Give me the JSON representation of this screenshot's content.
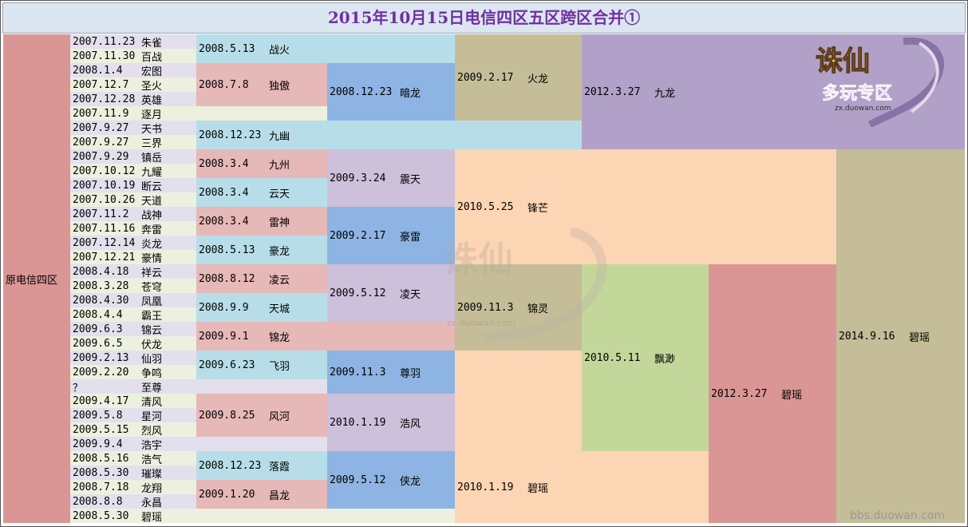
{
  "title": "2015年10月15日电信四区五区跨区合并①",
  "region_label": "原电信四区",
  "source_watermark": "bbs.duowan.com",
  "logo_text": "多玩专区",
  "logo_sub": "zx.duowan.com",
  "colors": {
    "pink": "#e6b8b7",
    "lightblue": "#b7dee8",
    "blue": "#8db4e2",
    "lavender": "#ccc0da",
    "tan": "#c4bd97",
    "purple": "#b1a0c7",
    "peach": "#fcd5b4",
    "green": "#c4d79b",
    "rose": "#da9694",
    "rowlav": "#e4dfec",
    "rowgreen": "#ebf1de"
  },
  "servers": [
    {
      "date": "2007.11.23",
      "name": "朱雀"
    },
    {
      "date": "2007.11.30",
      "name": "百战"
    },
    {
      "date": "2008.1.4",
      "name": "宏图"
    },
    {
      "date": "2007.12.7",
      "name": "圣火"
    },
    {
      "date": "2007.12.28",
      "name": "英雄"
    },
    {
      "date": "2007.11.9",
      "name": "逐月"
    },
    {
      "date": "2007.9.27",
      "name": "天书"
    },
    {
      "date": "2007.9.27",
      "name": "三界"
    },
    {
      "date": "2007.9.29",
      "name": "镇岳"
    },
    {
      "date": "2007.10.12",
      "name": "九耀"
    },
    {
      "date": "2007.10.19",
      "name": "断云"
    },
    {
      "date": "2007.10.26",
      "name": "天道"
    },
    {
      "date": "2007.11.2",
      "name": "战神"
    },
    {
      "date": "2007.11.16",
      "name": "奔雷"
    },
    {
      "date": "2007.12.14",
      "name": "炎龙"
    },
    {
      "date": "2007.12.21",
      "name": "豪情"
    },
    {
      "date": "2008.4.18",
      "name": "祥云"
    },
    {
      "date": "2008.3.28",
      "name": "苍穹"
    },
    {
      "date": "2008.4.30",
      "name": "凤凰"
    },
    {
      "date": "2008.4.4",
      "name": "霸王"
    },
    {
      "date": "2009.6.3",
      "name": "锦云"
    },
    {
      "date": "2009.6.5",
      "name": "伏龙"
    },
    {
      "date": "2009.2.13",
      "name": "仙羽"
    },
    {
      "date": "2009.2.20",
      "name": "争鸣"
    },
    {
      "date": "？",
      "name": "至尊"
    },
    {
      "date": "2009.4.17",
      "name": "清风"
    },
    {
      "date": "2009.5.8",
      "name": "星河"
    },
    {
      "date": "2009.5.15",
      "name": "烈风"
    },
    {
      "date": "2009.9.4",
      "name": "浩宇"
    },
    {
      "date": "2008.5.16",
      "name": "浩气"
    },
    {
      "date": "2008.5.30",
      "name": "璀璨"
    },
    {
      "date": "2008.7.18",
      "name": "龙翔"
    },
    {
      "date": "2008.8.8",
      "name": "永昌"
    },
    {
      "date": "2008.5.30",
      "name": "碧瑶"
    }
  ],
  "merges": [
    {
      "date": "2008.5.13",
      "name": "战火",
      "col": 2,
      "r0": 0,
      "r1": 1,
      "color": "lightblue"
    },
    {
      "date": "2008.7.8",
      "name": "独傲",
      "col": 2,
      "r0": 2,
      "r1": 4,
      "color": "pink"
    },
    {
      "date": "2008.12.23",
      "name": "九幽",
      "col": 2,
      "r0": 6,
      "r1": 7,
      "color": "lightblue"
    },
    {
      "date": "2008.3.4",
      "name": "九州",
      "col": 2,
      "r0": 8,
      "r1": 9,
      "color": "pink"
    },
    {
      "date": "2008.3.4",
      "name": "云天",
      "col": 2,
      "r0": 10,
      "r1": 11,
      "color": "lightblue"
    },
    {
      "date": "2008.3.4",
      "name": "雷神",
      "col": 2,
      "r0": 12,
      "r1": 13,
      "color": "pink"
    },
    {
      "date": "2008.5.13",
      "name": "豪龙",
      "col": 2,
      "r0": 14,
      "r1": 15,
      "color": "lightblue"
    },
    {
      "date": "2008.8.12",
      "name": "凌云",
      "col": 2,
      "r0": 16,
      "r1": 17,
      "color": "pink"
    },
    {
      "date": "2008.9.9",
      "name": "天城",
      "col": 2,
      "r0": 18,
      "r1": 19,
      "color": "lightblue"
    },
    {
      "date": "2009.9.1",
      "name": "锦龙",
      "col": 2,
      "r0": 20,
      "r1": 21,
      "color": "pink"
    },
    {
      "date": "2009.6.23",
      "name": "飞羽",
      "col": 2,
      "r0": 22,
      "r1": 23,
      "color": "lightblue"
    },
    {
      "date": "2009.8.25",
      "name": "风河",
      "col": 2,
      "r0": 25,
      "r1": 27,
      "color": "pink"
    },
    {
      "date": "2008.12.23",
      "name": "落霞",
      "col": 2,
      "r0": 29,
      "r1": 30,
      "color": "lightblue"
    },
    {
      "date": "2009.1.20",
      "name": "昌龙",
      "col": 2,
      "r0": 31,
      "r1": 32,
      "color": "pink"
    },
    {
      "date": "2008.12.23",
      "name": "暗龙",
      "col": 3,
      "r0": 2,
      "r1": 5,
      "color": "blue"
    },
    {
      "date": "2009.3.24",
      "name": "震天",
      "col": 3,
      "r0": 8,
      "r1": 11,
      "color": "lavender"
    },
    {
      "date": "2009.2.17",
      "name": "豪雷",
      "col": 3,
      "r0": 12,
      "r1": 15,
      "color": "blue"
    },
    {
      "date": "2009.5.12",
      "name": "凌天",
      "col": 3,
      "r0": 16,
      "r1": 19,
      "color": "lavender"
    },
    {
      "date": "2009.11.3",
      "name": "尊羽",
      "col": 3,
      "r0": 22,
      "r1": 24,
      "color": "blue"
    },
    {
      "date": "2010.1.19",
      "name": "浩风",
      "col": 3,
      "r0": 25,
      "r1": 28,
      "color": "lavender"
    },
    {
      "date": "2009.5.12",
      "name": "侠龙",
      "col": 3,
      "r0": 29,
      "r1": 32,
      "color": "blue"
    },
    {
      "date": "2009.2.17",
      "name": "火龙",
      "col": 4,
      "r0": 0,
      "r1": 5,
      "color": "tan"
    },
    {
      "date": "2010.5.25",
      "name": "锋芒",
      "col": 4,
      "r0": 8,
      "r1": 15,
      "color": "peach"
    },
    {
      "date": "2009.11.3",
      "name": "锦灵",
      "col": 4,
      "r0": 16,
      "r1": 21,
      "color": "tan"
    },
    {
      "date": "2010.1.19",
      "name": "碧瑶",
      "col": 4,
      "r0": 29,
      "r1": 33,
      "color": "peach"
    },
    {
      "date": "2012.3.27",
      "name": "九龙",
      "col": 5,
      "r0": 0,
      "r1": 7,
      "color": "purple"
    },
    {
      "date": "2010.5.11",
      "name": "飘渺",
      "col": 5,
      "r0": 16,
      "r1": 28,
      "color": "green"
    },
    {
      "date": "2012.3.27",
      "name": "碧瑶",
      "col": 6,
      "r0": 16,
      "r1": 33,
      "color": "rose"
    },
    {
      "date": "2014.9.16",
      "name": "碧瑶",
      "col": 7,
      "r0": 8,
      "r1": 33,
      "color": "tan"
    }
  ]
}
